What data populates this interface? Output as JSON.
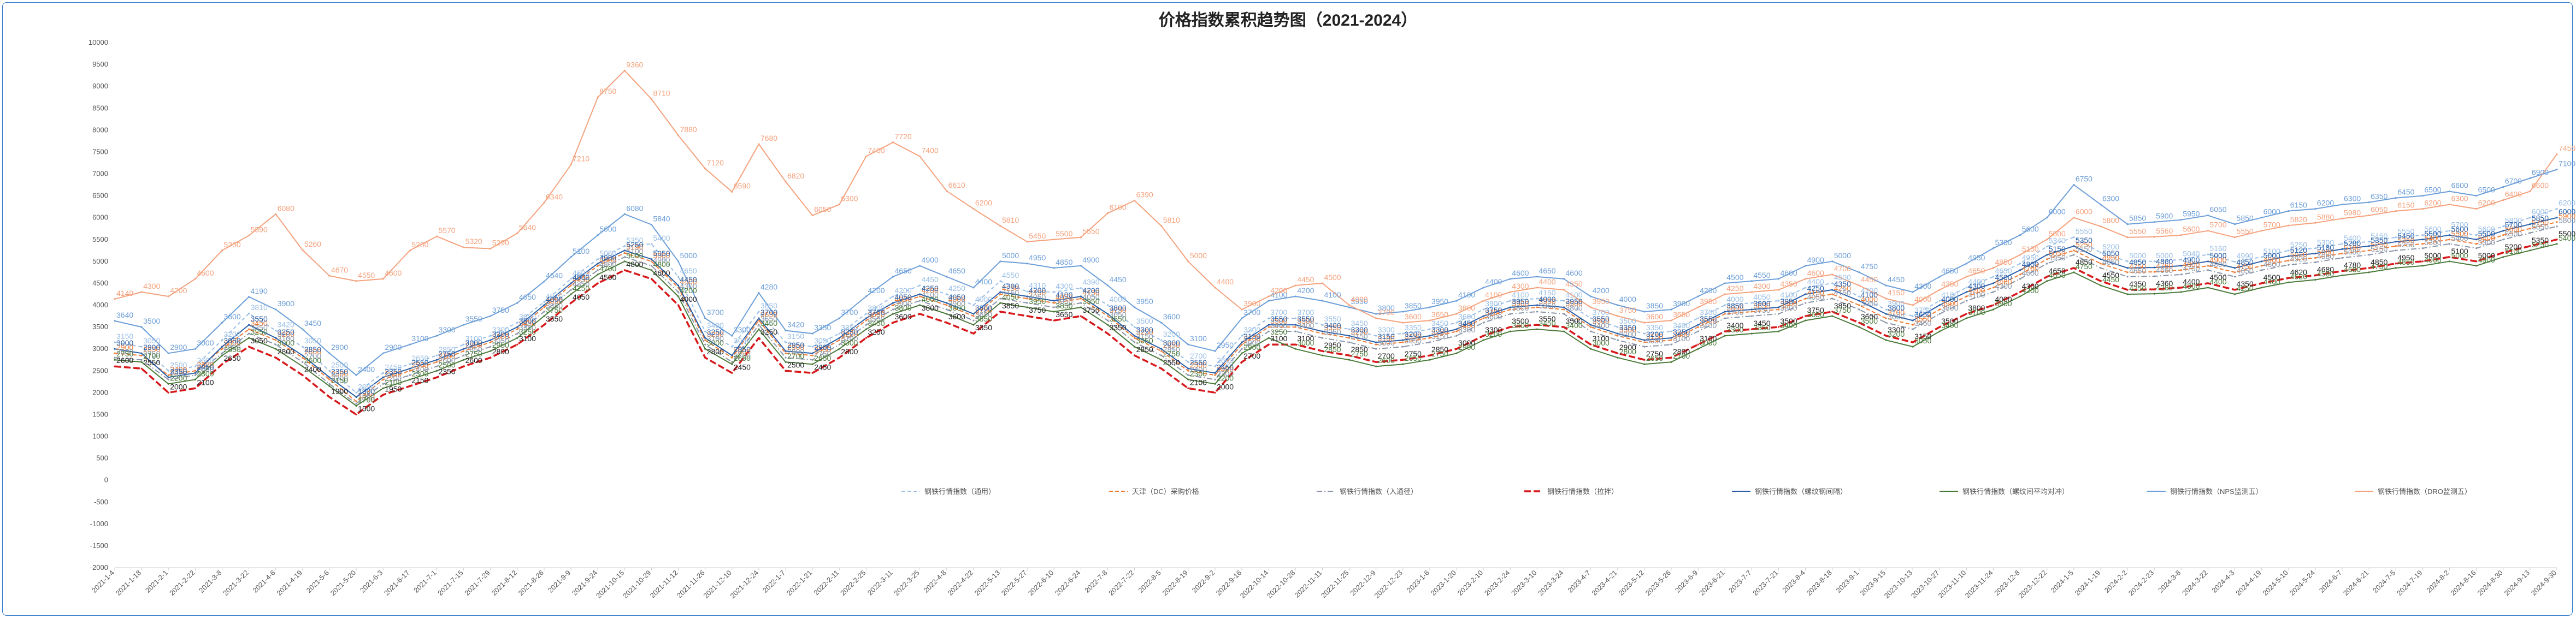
{
  "chart_data": {
    "type": "line",
    "title": "价格指数累积趋势图（2021-2024）",
    "ylim": [
      -2000,
      10000
    ],
    "yticks": [
      10000,
      9500,
      9000,
      8500,
      8000,
      7500,
      7000,
      6500,
      6000,
      5500,
      5000,
      4500,
      4000,
      3500,
      3000,
      2500,
      2000,
      1500,
      1000,
      500,
      0,
      -500,
      -1000,
      -1500,
      -2000
    ],
    "grid": false,
    "legend": "bottom",
    "x": [
      "2021-1-4",
      "2021-1-18",
      "2021-2-1",
      "2021-2-22",
      "2021-3-8",
      "2021-3-22",
      "2021-4-6",
      "2021-4-19",
      "2021-5-6",
      "2021-5-20",
      "2021-6-3",
      "2021-6-17",
      "2021-7-1",
      "2021-7-15",
      "2021-7-29",
      "2021-8-12",
      "2021-8-26",
      "2021-9-9",
      "2021-9-24",
      "2021-10-15",
      "2021-10-29",
      "2021-11-12",
      "2021-11-26",
      "2021-12-10",
      "2021-12-24",
      "2022-1-7",
      "2022-1-21",
      "2022-2-11",
      "2022-2-25",
      "2022-3-11",
      "2022-3-25",
      "2022-4-8",
      "2022-4-22",
      "2022-5-13",
      "2022-5-27",
      "2022-6-10",
      "2022-6-24",
      "2022-7-8",
      "2022-7-22",
      "2022-8-5",
      "2022-8-19",
      "2022-9-2",
      "2022-9-16",
      "2022-10-14",
      "2022-10-28",
      "2022-11-11",
      "2022-11-25",
      "2022-12-9",
      "2022-12-23",
      "2023-1-6",
      "2023-1-20",
      "2023-2-10",
      "2023-2-24",
      "2023-3-10",
      "2023-3-24",
      "2023-4-7",
      "2023-4-21",
      "2023-5-12",
      "2023-5-26",
      "2023-6-9",
      "2023-6-21",
      "2023-7-7",
      "2023-7-21",
      "2023-8-4",
      "2023-8-18",
      "2023-9-1",
      "2023-9-15",
      "2023-10-13",
      "2023-10-27",
      "2023-11-10",
      "2023-11-24",
      "2023-12-8",
      "2023-12-22",
      "2024-1-5",
      "2024-1-19",
      "2024-2-2",
      "2024-2-23",
      "2024-3-8",
      "2024-3-22",
      "2024-4-3",
      "2024-4-19",
      "2024-5-10",
      "2024-5-24",
      "2024-6-7",
      "2024-6-21",
      "2024-7-5",
      "2024-7-19",
      "2024-8-2",
      "2024-8-16",
      "2024-8-30",
      "2024-9-13",
      "2024-9-30"
    ],
    "series": [
      {
        "name": "钢铁行情指数（通用）",
        "color": "#9bbfe6",
        "dash": "6,5",
        "width": 2,
        "values": [
          3150,
          3050,
          2500,
          2600,
          3200,
          3810,
          3420,
          3050,
          2500,
          2000,
          2450,
          2650,
          2850,
          3100,
          3300,
          3600,
          4070,
          4600,
          5050,
          5350,
          5400,
          4650,
          3400,
          3050,
          3850,
          3150,
          3050,
          3350,
          3800,
          4200,
          4450,
          4250,
          4000,
          4550,
          4310,
          4300,
          4390,
          4000,
          3500,
          3200,
          2700,
          2600,
          3300,
          3700,
          3700,
          3550,
          3450,
          3300,
          3350,
          3450,
          3600,
          3900,
          4100,
          4150,
          4100,
          3700,
          3500,
          3350,
          3400,
          3700,
          4000,
          4050,
          4100,
          4400,
          4500,
          4200,
          3900,
          3750,
          4100,
          4400,
          4650,
          4950,
          5340,
          5550,
          5200,
          5000,
          5000,
          5040,
          5160,
          4990,
          5100,
          5250,
          5300,
          5400,
          5450,
          5550,
          5600,
          5700,
          5600,
          5800,
          6000,
          6200
        ]
      },
      {
        "name": "天津（DC）采购价格",
        "color": "#f07b34",
        "dash": "7,4",
        "width": 2,
        "values": [
          2900,
          2850,
          2400,
          2500,
          3000,
          3450,
          3200,
          2800,
          2300,
          1800,
          2300,
          2500,
          2700,
          2950,
          3150,
          3450,
          3950,
          4450,
          4900,
          5190,
          5000,
          4400,
          3200,
          2800,
          3650,
          2900,
          2850,
          3200,
          3650,
          4000,
          4200,
          4000,
          3750,
          4250,
          4150,
          4050,
          4150,
          3750,
          3250,
          2950,
          2500,
          2400,
          3100,
          3500,
          3500,
          3350,
          3250,
          3100,
          3150,
          3250,
          3400,
          3700,
          3900,
          3950,
          3900,
          3500,
          3300,
          3150,
          3200,
          3500,
          3800,
          3850,
          3900,
          4150,
          4250,
          4000,
          3700,
          3550,
          3900,
          4200,
          4400,
          4700,
          5050,
          5250,
          4950,
          4750,
          4760,
          4800,
          4900,
          4750,
          4900,
          5020,
          5080,
          5180,
          5250,
          5350,
          5400,
          5500,
          5400,
          5600,
          5750,
          5900
        ]
      },
      {
        "name": "钢铁行情指数（入通径）",
        "color": "#8a95a8",
        "dash": "10,4,2,4",
        "width": 2,
        "values": [
          2800,
          2750,
          2300,
          2400,
          2900,
          3350,
          3100,
          2700,
          2200,
          1750,
          2200,
          2400,
          2600,
          2850,
          3050,
          3350,
          3850,
          4350,
          4800,
          5100,
          4900,
          4300,
          3100,
          2700,
          3550,
          2800,
          2750,
          3100,
          3550,
          3900,
          4100,
          3900,
          3650,
          4150,
          4050,
          3950,
          4050,
          3650,
          3150,
          2850,
          2400,
          2300,
          3000,
          3400,
          3400,
          3250,
          3150,
          3000,
          3050,
          3150,
          3300,
          3600,
          3800,
          3850,
          3800,
          3400,
          3200,
          3050,
          3100,
          3400,
          3700,
          3750,
          3800,
          4050,
          4150,
          3900,
          3600,
          3450,
          3800,
          4100,
          4300,
          4600,
          4950,
          5150,
          4850,
          4650,
          4660,
          4700,
          4800,
          4650,
          4800,
          4920,
          4980,
          5080,
          5150,
          5250,
          5300,
          5400,
          5300,
          5500,
          5650,
          5800
        ]
      },
      {
        "name": "钢铁行情指数（拉拌）",
        "color": "#d7191c",
        "dash": "12,5",
        "width": 3.5,
        "values": [
          2600,
          2550,
          2000,
          2100,
          2650,
          3050,
          2800,
          2400,
          1900,
          1500,
          1950,
          2150,
          2350,
          2600,
          2800,
          3100,
          3550,
          4050,
          4500,
          4800,
          4600,
          4000,
          2800,
          2450,
          3250,
          2500,
          2450,
          2800,
          3250,
          3600,
          3800,
          3600,
          3350,
          3850,
          3750,
          3650,
          3750,
          3350,
          2850,
          2550,
          2100,
          2000,
          2700,
          3100,
          3100,
          2950,
          2850,
          2700,
          2750,
          2850,
          3000,
          3300,
          3500,
          3550,
          3500,
          3100,
          2900,
          2750,
          2800,
          3100,
          3400,
          3450,
          3500,
          3750,
          3850,
          3600,
          3300,
          3150,
          3500,
          3800,
          4000,
          4300,
          4650,
          4850,
          4550,
          4350,
          4360,
          4400,
          4500,
          4350,
          4500,
          4620,
          4680,
          4780,
          4850,
          4950,
          5000,
          5100,
          5000,
          5200,
          5350,
          5500
        ]
      },
      {
        "name": "钢铁行情指数（螺纹钢间隔）",
        "color": "#2a5fa8",
        "dash": "",
        "width": 2,
        "values": [
          3000,
          2900,
          2350,
          2450,
          3050,
          3550,
          3250,
          2850,
          2350,
          1900,
          2350,
          2550,
          2750,
          3000,
          3200,
          3500,
          4000,
          4500,
          4950,
          5250,
          5050,
          4450,
          3250,
          2850,
          3700,
          2950,
          2900,
          3250,
          3700,
          4050,
          4250,
          4050,
          3800,
          4300,
          4200,
          4100,
          4200,
          3800,
          3300,
          3000,
          2550,
          2450,
          3150,
          3550,
          3550,
          3400,
          3300,
          3150,
          3200,
          3300,
          3450,
          3750,
          3950,
          4000,
          3950,
          3550,
          3350,
          3200,
          3250,
          3550,
          3850,
          3900,
          3950,
          4250,
          4350,
          4100,
          3800,
          3650,
          4000,
          4300,
          4500,
          4800,
          5150,
          5350,
          5050,
          4850,
          4860,
          4900,
          5000,
          4850,
          5000,
          5120,
          5180,
          5280,
          5350,
          5450,
          5500,
          5600,
          5500,
          5700,
          5850,
          6000
        ]
      },
      {
        "name": "钢铁行情指数（螺纹间平均对冲）",
        "color": "#4a7a3a",
        "dash": "",
        "width": 2,
        "values": [
          2750,
          2700,
          2200,
          2300,
          2850,
          3250,
          3000,
          2600,
          2150,
          1700,
          2100,
          2300,
          2500,
          2750,
          2950,
          3250,
          3750,
          4250,
          4700,
          5000,
          4800,
          4200,
          3000,
          2650,
          3450,
          2700,
          2650,
          3000,
          3450,
          3800,
          4000,
          3800,
          3550,
          4050,
          3950,
          3850,
          3950,
          3550,
          3050,
          2750,
          2300,
          2200,
          2900,
          3250,
          3000,
          2850,
          2750,
          2600,
          2650,
          2750,
          2900,
          3200,
          3400,
          3450,
          3400,
          3000,
          2800,
          2650,
          2700,
          3000,
          3300,
          3350,
          3400,
          3650,
          3750,
          3500,
          3200,
          3050,
          3400,
          3700,
          3900,
          4200,
          4550,
          4750,
          4450,
          4250,
          4260,
          4300,
          4400,
          4250,
          4400,
          4520,
          4580,
          4680,
          4750,
          4850,
          4900,
          5000,
          4900,
          5100,
          5250,
          5400
        ]
      },
      {
        "name": "钢铁行情指数（NPS监测五）",
        "color": "#6d9fd8",
        "dash": "",
        "width": 2,
        "values": [
          3640,
          3500,
          2900,
          3000,
          3600,
          4190,
          3900,
          3450,
          2900,
          2400,
          2900,
          3100,
          3300,
          3550,
          3750,
          4050,
          4540,
          5100,
          5600,
          6080,
          5840,
          5000,
          3700,
          3300,
          4280,
          3420,
          3350,
          3700,
          4200,
          4650,
          4900,
          4650,
          4400,
          5000,
          4950,
          4850,
          4900,
          4450,
          3950,
          3600,
          3100,
          2950,
          3700,
          4100,
          4200,
          4100,
          3950,
          3800,
          3850,
          3950,
          4100,
          4400,
          4600,
          4650,
          4600,
          4200,
          4000,
          3850,
          3900,
          4200,
          4500,
          4550,
          4600,
          4900,
          5000,
          4750,
          4450,
          4300,
          4650,
          4950,
          5300,
          5600,
          6000,
          6750,
          6300,
          5850,
          5900,
          5950,
          6050,
          5850,
          6000,
          6150,
          6200,
          6300,
          6350,
          6450,
          6500,
          6600,
          6500,
          6700,
          6900,
          7100
        ]
      },
      {
        "name": "钢铁行情指数（DRO监测五）",
        "color": "#f4a27d",
        "dash": "",
        "width": 2,
        "values": [
          4140,
          4300,
          4200,
          4600,
          5250,
          5590,
          6080,
          5260,
          4670,
          4550,
          4600,
          5250,
          5570,
          5320,
          5290,
          5640,
          6340,
          7210,
          8750,
          9360,
          8710,
          7880,
          7120,
          6590,
          7680,
          6820,
          6050,
          6300,
          7400,
          7720,
          7400,
          6610,
          6200,
          5810,
          5450,
          5500,
          5550,
          6100,
          6390,
          5810,
          5000,
          4400,
          3900,
          4200,
          4450,
          4500,
          4000,
          3700,
          3600,
          3650,
          3800,
          4100,
          4300,
          4400,
          4350,
          3950,
          3750,
          3600,
          3650,
          3950,
          4250,
          4300,
          4350,
          4600,
          4700,
          4450,
          4150,
          4000,
          4350,
          4650,
          4850,
          5150,
          5500,
          6000,
          5800,
          5550,
          5560,
          5600,
          5700,
          5550,
          5700,
          5820,
          5880,
          5980,
          6050,
          6150,
          6200,
          6300,
          6200,
          6400,
          6600,
          7450
        ]
      }
    ]
  }
}
